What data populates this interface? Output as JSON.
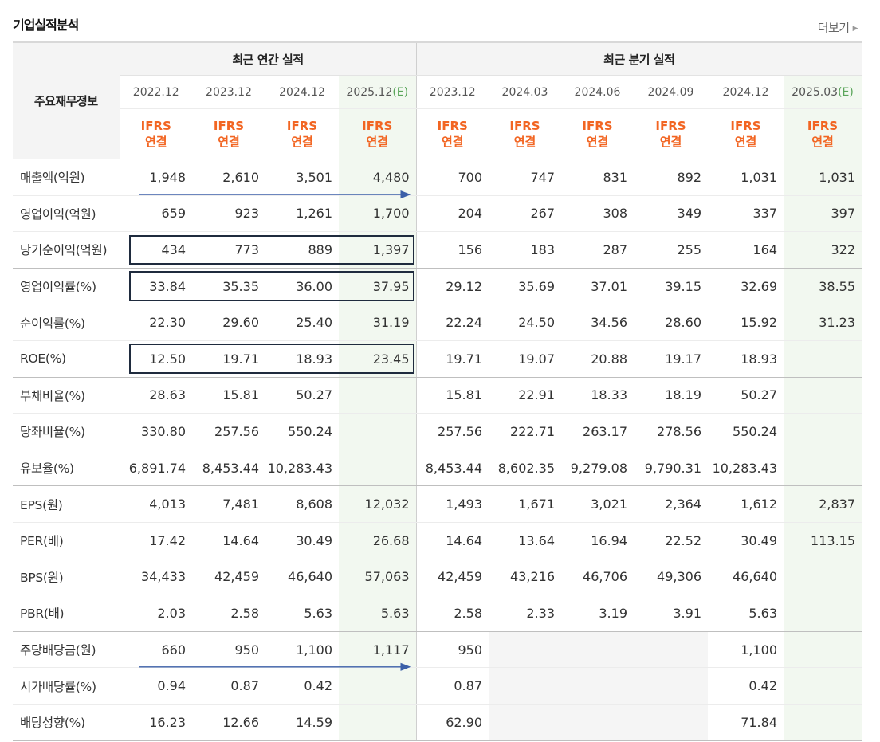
{
  "section": {
    "title": "기업실적분석",
    "more": "더보기"
  },
  "header": {
    "row_label": "주요재무정보",
    "annual_label": "최근 연간 실적",
    "quarter_label": "최근 분기 실적",
    "annual_periods": [
      "2022.12",
      "2023.12",
      "2024.12",
      "2025.12"
    ],
    "quarter_periods": [
      "2023.12",
      "2024.03",
      "2024.06",
      "2024.09",
      "2024.12",
      "2025.03"
    ],
    "estimate_mark": "(E)",
    "ifrs_line1": "IFRS",
    "ifrs_line2": "연결"
  },
  "rows": [
    {
      "label": "매출액(억원)",
      "values": [
        "1,948",
        "2,610",
        "3,501",
        "4,480",
        "700",
        "747",
        "831",
        "892",
        "1,031",
        "1,031"
      ]
    },
    {
      "label": "영업이익(억원)",
      "values": [
        "659",
        "923",
        "1,261",
        "1,700",
        "204",
        "267",
        "308",
        "349",
        "337",
        "397"
      ]
    },
    {
      "label": "당기순이익(억원)",
      "values": [
        "434",
        "773",
        "889",
        "1,397",
        "156",
        "183",
        "287",
        "255",
        "164",
        "322"
      ]
    },
    {
      "label": "영업이익률(%)",
      "values": [
        "33.84",
        "35.35",
        "36.00",
        "37.95",
        "29.12",
        "35.69",
        "37.01",
        "39.15",
        "32.69",
        "38.55"
      ]
    },
    {
      "label": "순이익률(%)",
      "values": [
        "22.30",
        "29.60",
        "25.40",
        "31.19",
        "22.24",
        "24.50",
        "34.56",
        "28.60",
        "15.92",
        "31.23"
      ]
    },
    {
      "label": "ROE(%)",
      "values": [
        "12.50",
        "19.71",
        "18.93",
        "23.45",
        "19.71",
        "19.07",
        "20.88",
        "19.17",
        "18.93",
        ""
      ]
    },
    {
      "label": "부채비율(%)",
      "values": [
        "28.63",
        "15.81",
        "50.27",
        "",
        "15.81",
        "22.91",
        "18.33",
        "18.19",
        "50.27",
        ""
      ]
    },
    {
      "label": "당좌비율(%)",
      "values": [
        "330.80",
        "257.56",
        "550.24",
        "",
        "257.56",
        "222.71",
        "263.17",
        "278.56",
        "550.24",
        ""
      ]
    },
    {
      "label": "유보율(%)",
      "values": [
        "6,891.74",
        "8,453.44",
        "10,283.43",
        "",
        "8,453.44",
        "8,602.35",
        "9,279.08",
        "9,790.31",
        "10,283.43",
        ""
      ]
    },
    {
      "label": "EPS(원)",
      "values": [
        "4,013",
        "7,481",
        "8,608",
        "12,032",
        "1,493",
        "1,671",
        "3,021",
        "2,364",
        "1,612",
        "2,837"
      ]
    },
    {
      "label": "PER(배)",
      "values": [
        "17.42",
        "14.64",
        "30.49",
        "26.68",
        "14.64",
        "13.64",
        "16.94",
        "22.52",
        "30.49",
        "113.15"
      ]
    },
    {
      "label": "BPS(원)",
      "values": [
        "34,433",
        "42,459",
        "46,640",
        "57,063",
        "42,459",
        "43,216",
        "46,706",
        "49,306",
        "46,640",
        ""
      ]
    },
    {
      "label": "PBR(배)",
      "values": [
        "2.03",
        "2.58",
        "5.63",
        "5.63",
        "2.58",
        "2.33",
        "3.19",
        "3.91",
        "5.63",
        ""
      ]
    },
    {
      "label": "주당배당금(원)",
      "values": [
        "660",
        "950",
        "1,100",
        "1,117",
        "950",
        "",
        "",
        "",
        "1,100",
        ""
      ]
    },
    {
      "label": "시가배당률(%)",
      "values": [
        "0.94",
        "0.87",
        "0.42",
        "",
        "0.87",
        "",
        "",
        "",
        "0.42",
        ""
      ]
    },
    {
      "label": "배당성향(%)",
      "values": [
        "16.23",
        "12.66",
        "14.59",
        "",
        "62.90",
        "",
        "",
        "",
        "71.84",
        ""
      ]
    }
  ],
  "empty_cells": [
    [
      13,
      5
    ],
    [
      13,
      6
    ],
    [
      13,
      7
    ],
    [
      14,
      5
    ],
    [
      14,
      6
    ],
    [
      14,
      7
    ],
    [
      15,
      5
    ],
    [
      15,
      6
    ],
    [
      15,
      7
    ]
  ],
  "group_end_rows": [
    2,
    5,
    8,
    12
  ],
  "highlight_rows": [
    2,
    3,
    5
  ],
  "arrow_rows": [
    0,
    13
  ],
  "colors": {
    "accent": "#f26522",
    "estimate_bg": "#f2f8f0",
    "box": "#1f2b3e",
    "arrow": "#3b5fa8"
  }
}
